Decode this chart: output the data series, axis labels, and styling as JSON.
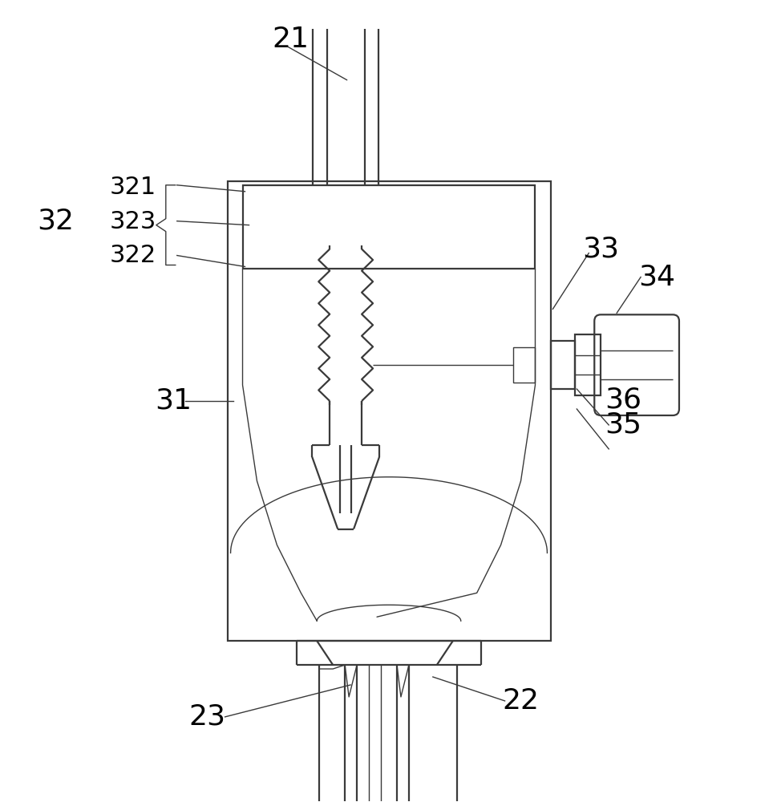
{
  "bg_color": "#ffffff",
  "line_color": "#3a3a3a",
  "lw": 1.6,
  "lw_thin": 1.0,
  "fig_w": 9.69,
  "fig_h": 10.0
}
